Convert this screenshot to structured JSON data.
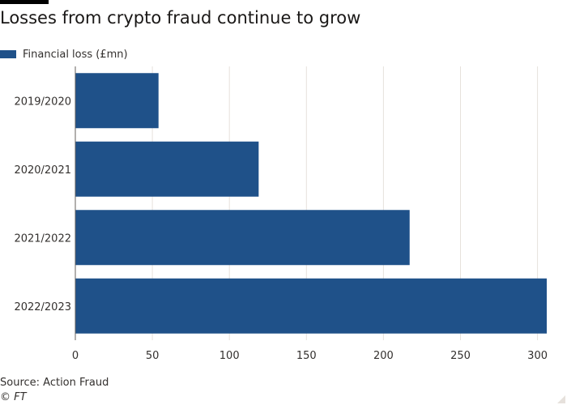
{
  "title": "Losses from crypto fraud continue to grow",
  "legend": {
    "label": "Financial loss (£mn)",
    "color": "#1f5189"
  },
  "chart_data": {
    "type": "bar",
    "orientation": "horizontal",
    "categories": [
      "2019/2020",
      "2020/2021",
      "2021/2022",
      "2022/2023"
    ],
    "series": [
      {
        "name": "Financial loss (£mn)",
        "values": [
          54,
          119,
          217,
          306
        ]
      }
    ],
    "xlim": [
      0,
      306
    ],
    "xticks": [
      0,
      50,
      100,
      150,
      200,
      250,
      300
    ],
    "grid": true,
    "legend_position": "top-left"
  },
  "source": "Source: Action Fraud",
  "credit": "© FT",
  "colors": {
    "bar": "#1f5189",
    "grid": "#e6e1dc",
    "axis": "#66605c",
    "text": "#33302e"
  }
}
